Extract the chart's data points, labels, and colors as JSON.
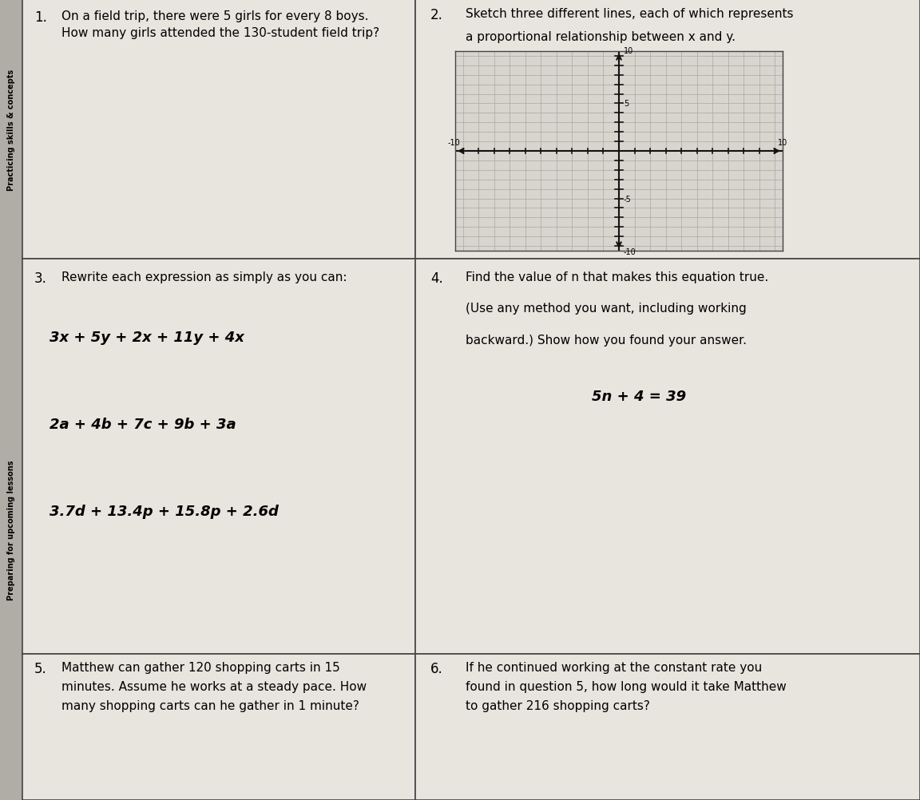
{
  "bg_color": "#c8c4bf",
  "cell_bg": "#e8e4de",
  "border_color": "#444444",
  "text_color": "#111111",
  "sidebar_text1": "Practicing skills & concepts",
  "sidebar_text2": "Preparing for upcoming lessons",
  "sidebar_bg": "#999999",
  "q1_number": "1.",
  "q1_text": "On a field trip, there were 5 girls for every 8 boys.\nHow many girls attended the 130-student field trip?",
  "q2_number": "2.",
  "q2_line1": "Sketch three different lines, each of which represents",
  "q2_line2": "a proportional relationship between x and y.",
  "q3_number": "3.",
  "q3_header": "Rewrite each expression as simply as you can:",
  "q3_expr1": "3x + 5y + 2x + 11y + 4x",
  "q3_expr2": "2a + 4b + 7c + 9b + 3a",
  "q3_expr3": "3.7d + 13.4p + 15.8p + 2.6d",
  "q4_number": "4.",
  "q4_line1": "Find the value of n that makes this equation true.",
  "q4_line2": "(Use any method you want, including working",
  "q4_line3": "backward.) Show how you found your answer.",
  "q4_eq": "5n + 4 = 39",
  "q5_number": "5.",
  "q5_line1": "Matthew can gather 120 shopping carts in 15",
  "q5_line2": "minutes. Assume he works at a steady pace. How",
  "q5_line3": "many shopping carts can he gather in 1 minute?",
  "q6_number": "6.",
  "q6_line1": "If he continued working at the constant rate you",
  "q6_line2": "found in question 5, how long would it take Matthew",
  "q6_line3": "to gather 216 shopping carts?",
  "graph_bg": "#d8d4ce",
  "grid_color": "#aaa89f",
  "axis_color": "#111111"
}
